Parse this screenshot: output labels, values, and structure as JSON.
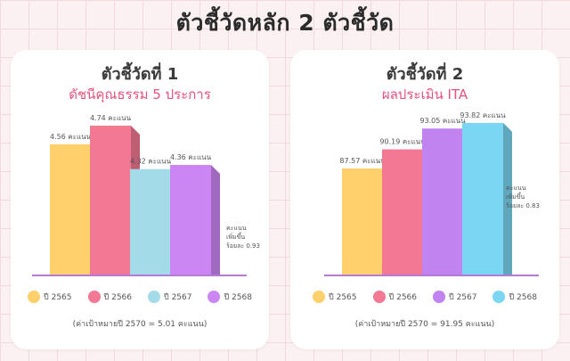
{
  "page": {
    "title": "ตัวชี้วัดหลัก 2 ตัวชี้วัด"
  },
  "chart_data": [
    {
      "type": "bar",
      "title": "ตัวชี้วัดที่ 1",
      "subtitle": "ดัชนีคุณธรรม 5 ประการ",
      "categories": [
        "ปี 2565",
        "ปี 2566",
        "ปี 2567",
        "ปี 2568"
      ],
      "values": [
        4.56,
        4.74,
        4.32,
        4.36
      ],
      "value_labels": [
        "4.56 คะแนน",
        "4.74 คะแนน",
        "4.32 คะแนน",
        "4.36 คะแนน"
      ],
      "colors": [
        "#ffd06b",
        "#f27894",
        "#a3dbe8",
        "#cb86f3"
      ],
      "ylim": [
        3.3,
        4.8
      ],
      "note": [
        "คะแนน",
        "เพิ่มขึ้น",
        "ร้อยละ 0.93"
      ],
      "target": "(ค่าเป้าหมายปี 2570 = 5.01 คะแนน)"
    },
    {
      "type": "bar",
      "title": "ตัวชี้วัดที่ 2",
      "subtitle": "ผลประเมิน ITA",
      "categories": [
        "ปี 2565",
        "ปี 2566",
        "ปี 2567",
        "ปี 2568"
      ],
      "values": [
        87.57,
        90.19,
        93.05,
        93.82
      ],
      "value_labels": [
        "87.57 คะแนน",
        "90.19 คะแนน",
        "93.05 คะแนน",
        "93.82 คะแนน"
      ],
      "colors": [
        "#ffd06b",
        "#f27894",
        "#c083f0",
        "#7ad6f2"
      ],
      "ylim": [
        73,
        94.3
      ],
      "note": [
        "คะแนน",
        "เพิ่มขึ้น",
        "ร้อยละ 0.83"
      ],
      "target": "(ค่าเป้าหมายปี 2570 = 91.95 คะแนน)"
    }
  ]
}
